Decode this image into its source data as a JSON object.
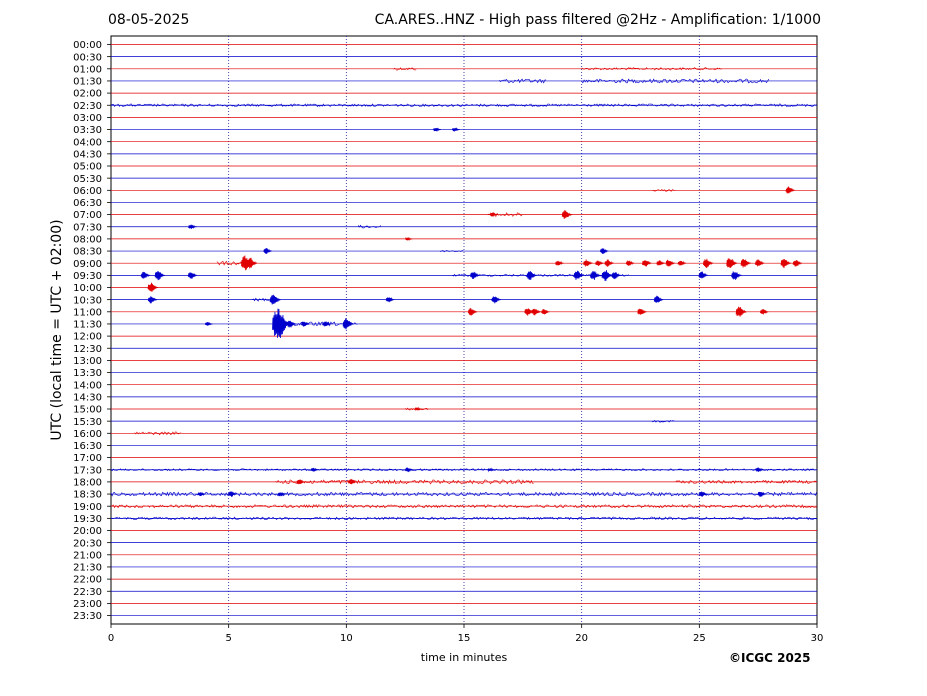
{
  "header": {
    "date": "08-05-2025",
    "title": "CA.ARES..HNZ - High pass filtered @2Hz - Amplification: 1/1000"
  },
  "footer": {
    "copyright": "©ICGC 2025"
  },
  "chart_data": {
    "type": "line",
    "title": "CA.ARES..HNZ - High pass filtered @2Hz - Amplification: 1/1000",
    "xlabel": "time in minutes",
    "ylabel": "UTC (local time = UTC + 02:00)",
    "xlim": [
      0,
      30
    ],
    "xticks": [
      0,
      5,
      10,
      15,
      20,
      25,
      30
    ],
    "grid": "vertical dotted at 5-minute ticks",
    "row_colors": [
      "#e00000",
      "#0000cc"
    ],
    "rows": [
      "00:00",
      "00:30",
      "01:00",
      "01:30",
      "02:00",
      "02:30",
      "03:00",
      "03:30",
      "04:00",
      "04:30",
      "05:00",
      "05:30",
      "06:00",
      "06:30",
      "07:00",
      "07:30",
      "08:00",
      "08:30",
      "09:00",
      "09:30",
      "10:00",
      "10:30",
      "11:00",
      "11:30",
      "12:00",
      "12:30",
      "13:00",
      "13:30",
      "14:00",
      "14:30",
      "15:00",
      "15:30",
      "16:00",
      "16:30",
      "17:00",
      "17:30",
      "18:00",
      "18:30",
      "19:00",
      "19:30",
      "20:00",
      "20:30",
      "21:00",
      "21:30",
      "22:00",
      "22:30",
      "23:00",
      "23:30"
    ],
    "noise": [
      {
        "row": "01:00",
        "from": 12,
        "to": 13,
        "amp": 1.5
      },
      {
        "row": "01:00",
        "from": 20,
        "to": 26,
        "amp": 1.2
      },
      {
        "row": "01:30",
        "from": 16.5,
        "to": 18.5,
        "amp": 2
      },
      {
        "row": "01:30",
        "from": 20,
        "to": 28,
        "amp": 2
      },
      {
        "row": "02:30",
        "from": 0,
        "to": 30,
        "amp": 1.3
      },
      {
        "row": "06:00",
        "from": 23,
        "to": 24,
        "amp": 1
      },
      {
        "row": "07:00",
        "from": 16,
        "to": 17.5,
        "amp": 2
      },
      {
        "row": "07:30",
        "from": 10.5,
        "to": 11.5,
        "amp": 1.5
      },
      {
        "row": "08:30",
        "from": 14,
        "to": 15,
        "amp": 1
      },
      {
        "row": "09:00",
        "from": 4.5,
        "to": 6,
        "amp": 2
      },
      {
        "row": "09:30",
        "from": 14.5,
        "to": 22,
        "amp": 1
      },
      {
        "row": "10:30",
        "from": 6,
        "to": 7,
        "amp": 1.5
      },
      {
        "row": "11:30",
        "from": 7,
        "to": 10.5,
        "amp": 2
      },
      {
        "row": "15:00",
        "from": 12.5,
        "to": 13.5,
        "amp": 1
      },
      {
        "row": "15:30",
        "from": 23,
        "to": 24,
        "amp": 1
      },
      {
        "row": "16:00",
        "from": 1,
        "to": 3,
        "amp": 1.5
      },
      {
        "row": "17:30",
        "from": 0,
        "to": 30,
        "amp": 1
      },
      {
        "row": "18:00",
        "from": 7,
        "to": 18,
        "amp": 2
      },
      {
        "row": "18:00",
        "from": 24,
        "to": 30,
        "amp": 1.5
      },
      {
        "row": "18:30",
        "from": 0,
        "to": 30,
        "amp": 1.8
      },
      {
        "row": "19:00",
        "from": 0,
        "to": 30,
        "amp": 1.5
      },
      {
        "row": "19:30",
        "from": 0,
        "to": 30,
        "amp": 1.3
      }
    ],
    "events": [
      {
        "row": "03:30",
        "t": 13.8,
        "amp": 2
      },
      {
        "row": "03:30",
        "t": 14.6,
        "amp": 2
      },
      {
        "row": "06:00",
        "t": 28.8,
        "amp": 4
      },
      {
        "row": "07:00",
        "t": 16.2,
        "amp": 2
      },
      {
        "row": "07:00",
        "t": 19.3,
        "amp": 5
      },
      {
        "row": "07:30",
        "t": 3.4,
        "amp": 2.5
      },
      {
        "row": "08:00",
        "t": 12.6,
        "amp": 1.5
      },
      {
        "row": "08:30",
        "t": 6.6,
        "amp": 3
      },
      {
        "row": "08:30",
        "t": 20.9,
        "amp": 3
      },
      {
        "row": "09:00",
        "t": 5.7,
        "amp": 8
      },
      {
        "row": "09:00",
        "t": 5.9,
        "amp": 6
      },
      {
        "row": "09:00",
        "t": 19.0,
        "amp": 3
      },
      {
        "row": "09:00",
        "t": 20.2,
        "amp": 4
      },
      {
        "row": "09:00",
        "t": 20.7,
        "amp": 3
      },
      {
        "row": "09:00",
        "t": 21.1,
        "amp": 4
      },
      {
        "row": "09:00",
        "t": 22.0,
        "amp": 3
      },
      {
        "row": "09:00",
        "t": 22.7,
        "amp": 4
      },
      {
        "row": "09:00",
        "t": 23.3,
        "amp": 3
      },
      {
        "row": "09:00",
        "t": 23.7,
        "amp": 4
      },
      {
        "row": "09:00",
        "t": 24.2,
        "amp": 3
      },
      {
        "row": "09:00",
        "t": 25.3,
        "amp": 5
      },
      {
        "row": "09:00",
        "t": 26.3,
        "amp": 6
      },
      {
        "row": "09:00",
        "t": 26.9,
        "amp": 5
      },
      {
        "row": "09:00",
        "t": 27.5,
        "amp": 4
      },
      {
        "row": "09:00",
        "t": 28.6,
        "amp": 5
      },
      {
        "row": "09:00",
        "t": 29.1,
        "amp": 4
      },
      {
        "row": "09:30",
        "t": 1.4,
        "amp": 4
      },
      {
        "row": "09:30",
        "t": 2.0,
        "amp": 5
      },
      {
        "row": "09:30",
        "t": 3.4,
        "amp": 4
      },
      {
        "row": "09:30",
        "t": 15.4,
        "amp": 4
      },
      {
        "row": "09:30",
        "t": 17.8,
        "amp": 5
      },
      {
        "row": "09:30",
        "t": 19.8,
        "amp": 5
      },
      {
        "row": "09:30",
        "t": 20.5,
        "amp": 5
      },
      {
        "row": "09:30",
        "t": 21.0,
        "amp": 6
      },
      {
        "row": "09:30",
        "t": 21.4,
        "amp": 4
      },
      {
        "row": "09:30",
        "t": 25.1,
        "amp": 4
      },
      {
        "row": "09:30",
        "t": 26.5,
        "amp": 5
      },
      {
        "row": "10:00",
        "t": 1.7,
        "amp": 5
      },
      {
        "row": "10:30",
        "t": 1.7,
        "amp": 4
      },
      {
        "row": "10:30",
        "t": 6.9,
        "amp": 6
      },
      {
        "row": "10:30",
        "t": 11.8,
        "amp": 3
      },
      {
        "row": "10:30",
        "t": 16.3,
        "amp": 4
      },
      {
        "row": "10:30",
        "t": 23.2,
        "amp": 4
      },
      {
        "row": "11:00",
        "t": 15.3,
        "amp": 4
      },
      {
        "row": "11:00",
        "t": 17.7,
        "amp": 4
      },
      {
        "row": "11:00",
        "t": 18.0,
        "amp": 4
      },
      {
        "row": "11:00",
        "t": 18.4,
        "amp": 3
      },
      {
        "row": "11:00",
        "t": 22.5,
        "amp": 4
      },
      {
        "row": "11:00",
        "t": 26.7,
        "amp": 6
      },
      {
        "row": "11:00",
        "t": 27.7,
        "amp": 3
      },
      {
        "row": "11:30",
        "t": 4.1,
        "amp": 2
      },
      {
        "row": "11:30",
        "t": 7.1,
        "amp": 16
      },
      {
        "row": "11:30",
        "t": 7.6,
        "amp": 4
      },
      {
        "row": "11:30",
        "t": 8.2,
        "amp": 3
      },
      {
        "row": "11:30",
        "t": 9.1,
        "amp": 3
      },
      {
        "row": "11:30",
        "t": 10.0,
        "amp": 6
      },
      {
        "row": "15:00",
        "t": 13.0,
        "amp": 1.5
      },
      {
        "row": "17:30",
        "t": 8.6,
        "amp": 2
      },
      {
        "row": "17:30",
        "t": 12.6,
        "amp": 2.5
      },
      {
        "row": "17:30",
        "t": 16.1,
        "amp": 1.5
      },
      {
        "row": "17:30",
        "t": 27.5,
        "amp": 2.5
      },
      {
        "row": "18:00",
        "t": 8.0,
        "amp": 3
      },
      {
        "row": "18:00",
        "t": 10.2,
        "amp": 3
      },
      {
        "row": "18:30",
        "t": 3.8,
        "amp": 2
      },
      {
        "row": "18:30",
        "t": 5.1,
        "amp": 3
      },
      {
        "row": "18:30",
        "t": 7.2,
        "amp": 2.5
      },
      {
        "row": "18:30",
        "t": 25.1,
        "amp": 3
      },
      {
        "row": "18:30",
        "t": 27.6,
        "amp": 3
      }
    ]
  }
}
